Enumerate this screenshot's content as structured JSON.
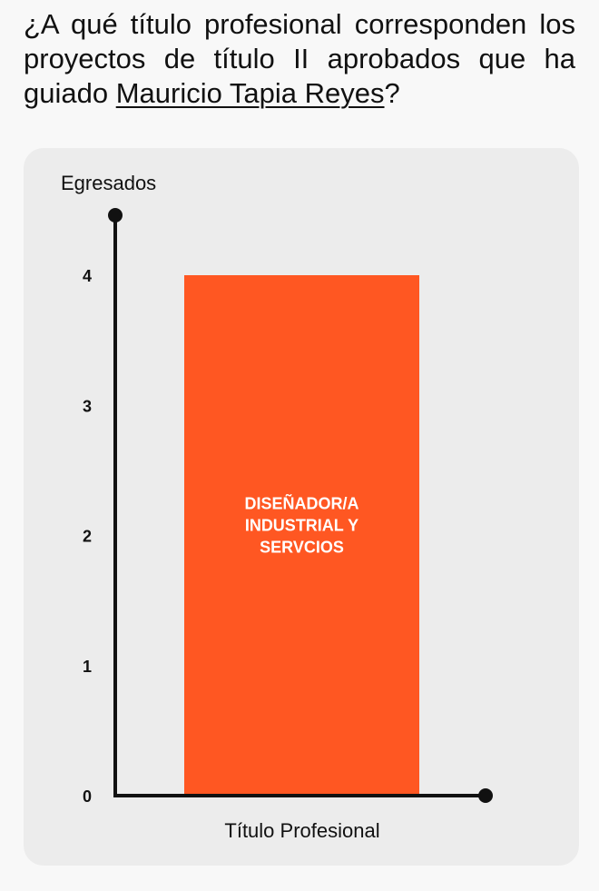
{
  "question": {
    "prefix": "¿A qué título profesional corresponden los proyectos de título II aprobados que ha guiado ",
    "link": "Mauricio Tapia Reyes",
    "suffix": "?"
  },
  "colors": {
    "bar": "#ff5722",
    "axis": "#111111",
    "card": "#ececec",
    "background": "#f8f8f8"
  },
  "chart_data": {
    "type": "bar",
    "categories": [
      "DISEÑADOR/A INDUSTRIAL Y SERVCIOS"
    ],
    "values": [
      4
    ],
    "bar_label_lines": [
      "DISEÑADOR/A",
      "INDUSTRIAL Y",
      "SERVCIOS"
    ],
    "title": "",
    "xlabel": "Título Profesional",
    "ylabel": "Egresados",
    "yticks": [
      0,
      1,
      2,
      3,
      4
    ],
    "ylim": [
      0,
      4
    ],
    "grid": false,
    "legend": "none"
  }
}
